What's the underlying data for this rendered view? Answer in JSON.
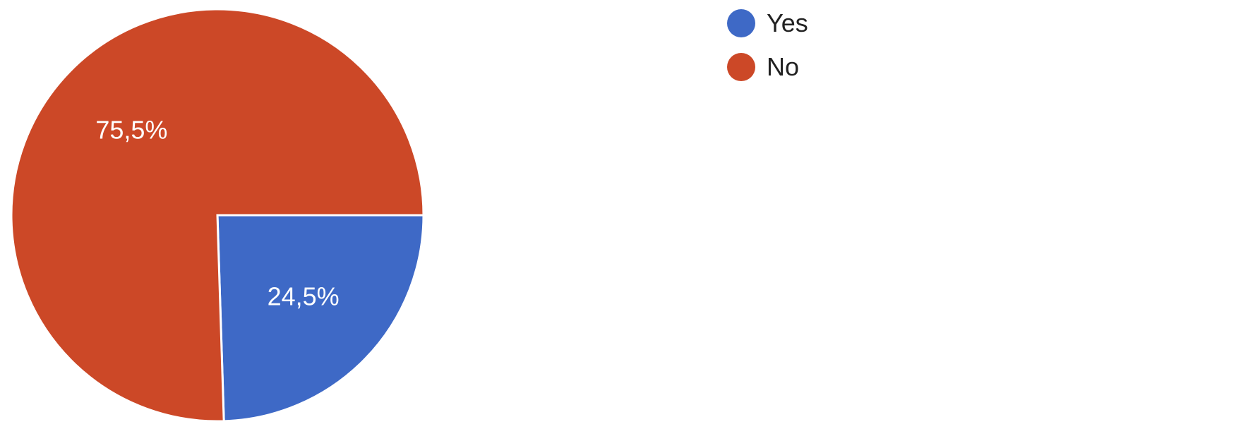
{
  "chart_data": {
    "type": "pie",
    "categories": [
      "Yes",
      "No"
    ],
    "values": [
      24.5,
      75.5
    ],
    "labels": [
      "24,5%",
      "75,5%"
    ],
    "colors": [
      "#3e69c6",
      "#cc4827"
    ],
    "legend_position": "top-right"
  }
}
